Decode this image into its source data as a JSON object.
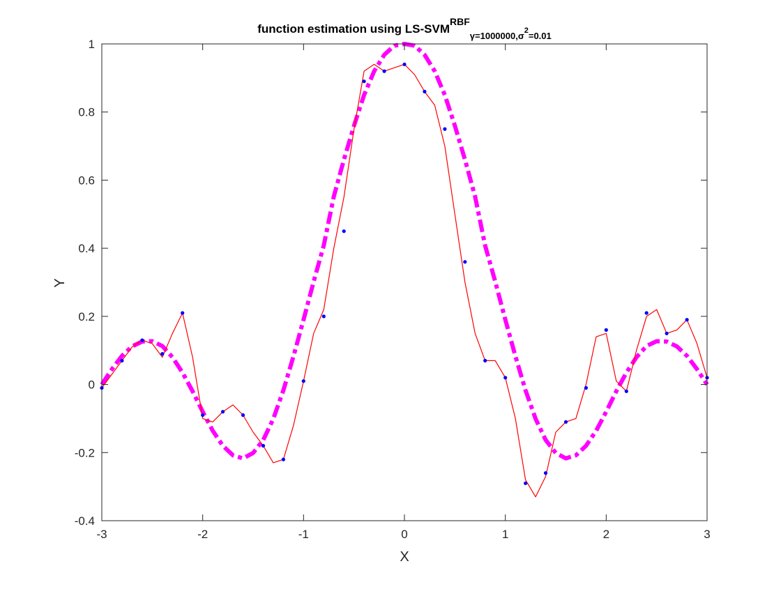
{
  "chart_data": {
    "type": "line",
    "title": {
      "prefix": "function estimation using  LS-SVM",
      "superscript": "RBF",
      "sub_gamma": "γ=1000000,",
      "sub_sigma": "σ",
      "sub_sigma_exp": "2",
      "sub_value": "=0.01"
    },
    "xlabel": "X",
    "ylabel": "Y",
    "xlim": [
      -3,
      3
    ],
    "ylim": [
      -0.4,
      1
    ],
    "xticks": [
      "-3",
      "-2",
      "-1",
      "0",
      "1",
      "2",
      "3"
    ],
    "yticks": [
      "-0.4",
      "-0.2",
      "0",
      "0.2",
      "0.4",
      "0.6",
      "0.8",
      "1"
    ],
    "grid": false,
    "colors": {
      "true_function": "#ff00ff",
      "estimate": "#ff0000",
      "data_points": "#0000ff",
      "axes": "#262626"
    },
    "series": [
      {
        "role": "true function (sinc), thick dashed",
        "style": "dashed",
        "x": [
          -3.0,
          -2.9,
          -2.8,
          -2.7,
          -2.6,
          -2.5,
          -2.4,
          -2.3,
          -2.2,
          -2.1,
          -2.0,
          -1.9,
          -1.8,
          -1.7,
          -1.6,
          -1.5,
          -1.4,
          -1.3,
          -1.2,
          -1.1,
          -1.0,
          -0.9,
          -0.8,
          -0.7,
          -0.6,
          -0.5,
          -0.4,
          -0.3,
          -0.2,
          -0.1,
          0.0,
          0.1,
          0.2,
          0.3,
          0.4,
          0.5,
          0.6,
          0.7,
          0.8,
          0.9,
          1.0,
          1.1,
          1.2,
          1.3,
          1.4,
          1.5,
          1.6,
          1.7,
          1.8,
          1.9,
          2.0,
          2.1,
          2.2,
          2.3,
          2.4,
          2.5,
          2.6,
          2.7,
          2.8,
          2.9,
          3.0
        ],
        "y": [
          0.0,
          0.045,
          0.084,
          0.112,
          0.126,
          0.127,
          0.113,
          0.08,
          0.035,
          -0.02,
          -0.08,
          -0.136,
          -0.18,
          -0.208,
          -0.217,
          -0.201,
          -0.163,
          -0.101,
          -0.017,
          0.083,
          0.19,
          0.302,
          0.408,
          0.552,
          0.66,
          0.76,
          0.85,
          0.92,
          0.968,
          0.995,
          1.0,
          0.995,
          0.968,
          0.92,
          0.85,
          0.76,
          0.66,
          0.552,
          0.408,
          0.302,
          0.19,
          0.083,
          -0.017,
          -0.101,
          -0.163,
          -0.201,
          -0.217,
          -0.208,
          -0.18,
          -0.136,
          -0.08,
          -0.02,
          0.035,
          0.08,
          0.113,
          0.127,
          0.126,
          0.112,
          0.084,
          0.045,
          0.0
        ]
      },
      {
        "role": "LS-SVM estimate, thin solid",
        "style": "solid",
        "x": [
          -3.0,
          -2.9,
          -2.8,
          -2.7,
          -2.6,
          -2.5,
          -2.4,
          -2.3,
          -2.2,
          -2.1,
          -2.0,
          -1.9,
          -1.8,
          -1.7,
          -1.6,
          -1.5,
          -1.4,
          -1.3,
          -1.2,
          -1.1,
          -1.0,
          -0.9,
          -0.8,
          -0.7,
          -0.6,
          -0.5,
          -0.4,
          -0.3,
          -0.2,
          -0.1,
          0.0,
          0.1,
          0.2,
          0.3,
          0.4,
          0.5,
          0.6,
          0.7,
          0.8,
          0.9,
          1.0,
          1.1,
          1.2,
          1.3,
          1.4,
          1.5,
          1.6,
          1.7,
          1.8,
          1.9,
          2.0,
          2.1,
          2.2,
          2.3,
          2.4,
          2.5,
          2.6,
          2.7,
          2.8,
          2.9,
          3.0
        ],
        "y": [
          -0.01,
          0.03,
          0.07,
          0.11,
          0.13,
          0.12,
          0.08,
          0.15,
          0.21,
          0.08,
          -0.1,
          -0.11,
          -0.08,
          -0.06,
          -0.09,
          -0.14,
          -0.18,
          -0.23,
          -0.22,
          -0.12,
          0.01,
          0.15,
          0.22,
          0.4,
          0.55,
          0.75,
          0.92,
          0.94,
          0.92,
          0.93,
          0.94,
          0.91,
          0.86,
          0.82,
          0.7,
          0.5,
          0.3,
          0.15,
          0.07,
          0.07,
          0.02,
          -0.1,
          -0.28,
          -0.33,
          -0.27,
          -0.14,
          -0.11,
          -0.1,
          0.0,
          0.14,
          0.15,
          0.01,
          -0.02,
          0.1,
          0.2,
          0.22,
          0.15,
          0.16,
          0.19,
          0.12,
          0.02
        ]
      },
      {
        "role": "noisy training data",
        "style": "markers",
        "x": [
          -3.0,
          -2.8,
          -2.6,
          -2.4,
          -2.2,
          -2.0,
          -1.8,
          -1.6,
          -1.4,
          -1.2,
          -1.0,
          -0.8,
          -0.6,
          -0.4,
          -0.2,
          0.0,
          0.2,
          0.4,
          0.6,
          0.8,
          1.0,
          1.2,
          1.4,
          1.6,
          1.8,
          2.0,
          2.2,
          2.4,
          2.6,
          2.8,
          3.0
        ],
        "y": [
          -0.01,
          0.07,
          0.13,
          0.09,
          0.21,
          -0.09,
          -0.08,
          -0.09,
          -0.18,
          -0.22,
          0.01,
          0.2,
          0.45,
          0.89,
          0.92,
          0.94,
          0.86,
          0.75,
          0.36,
          0.07,
          0.02,
          -0.29,
          -0.26,
          -0.11,
          -0.01,
          0.16,
          -0.02,
          0.21,
          0.15,
          0.19,
          0.02
        ]
      }
    ]
  }
}
